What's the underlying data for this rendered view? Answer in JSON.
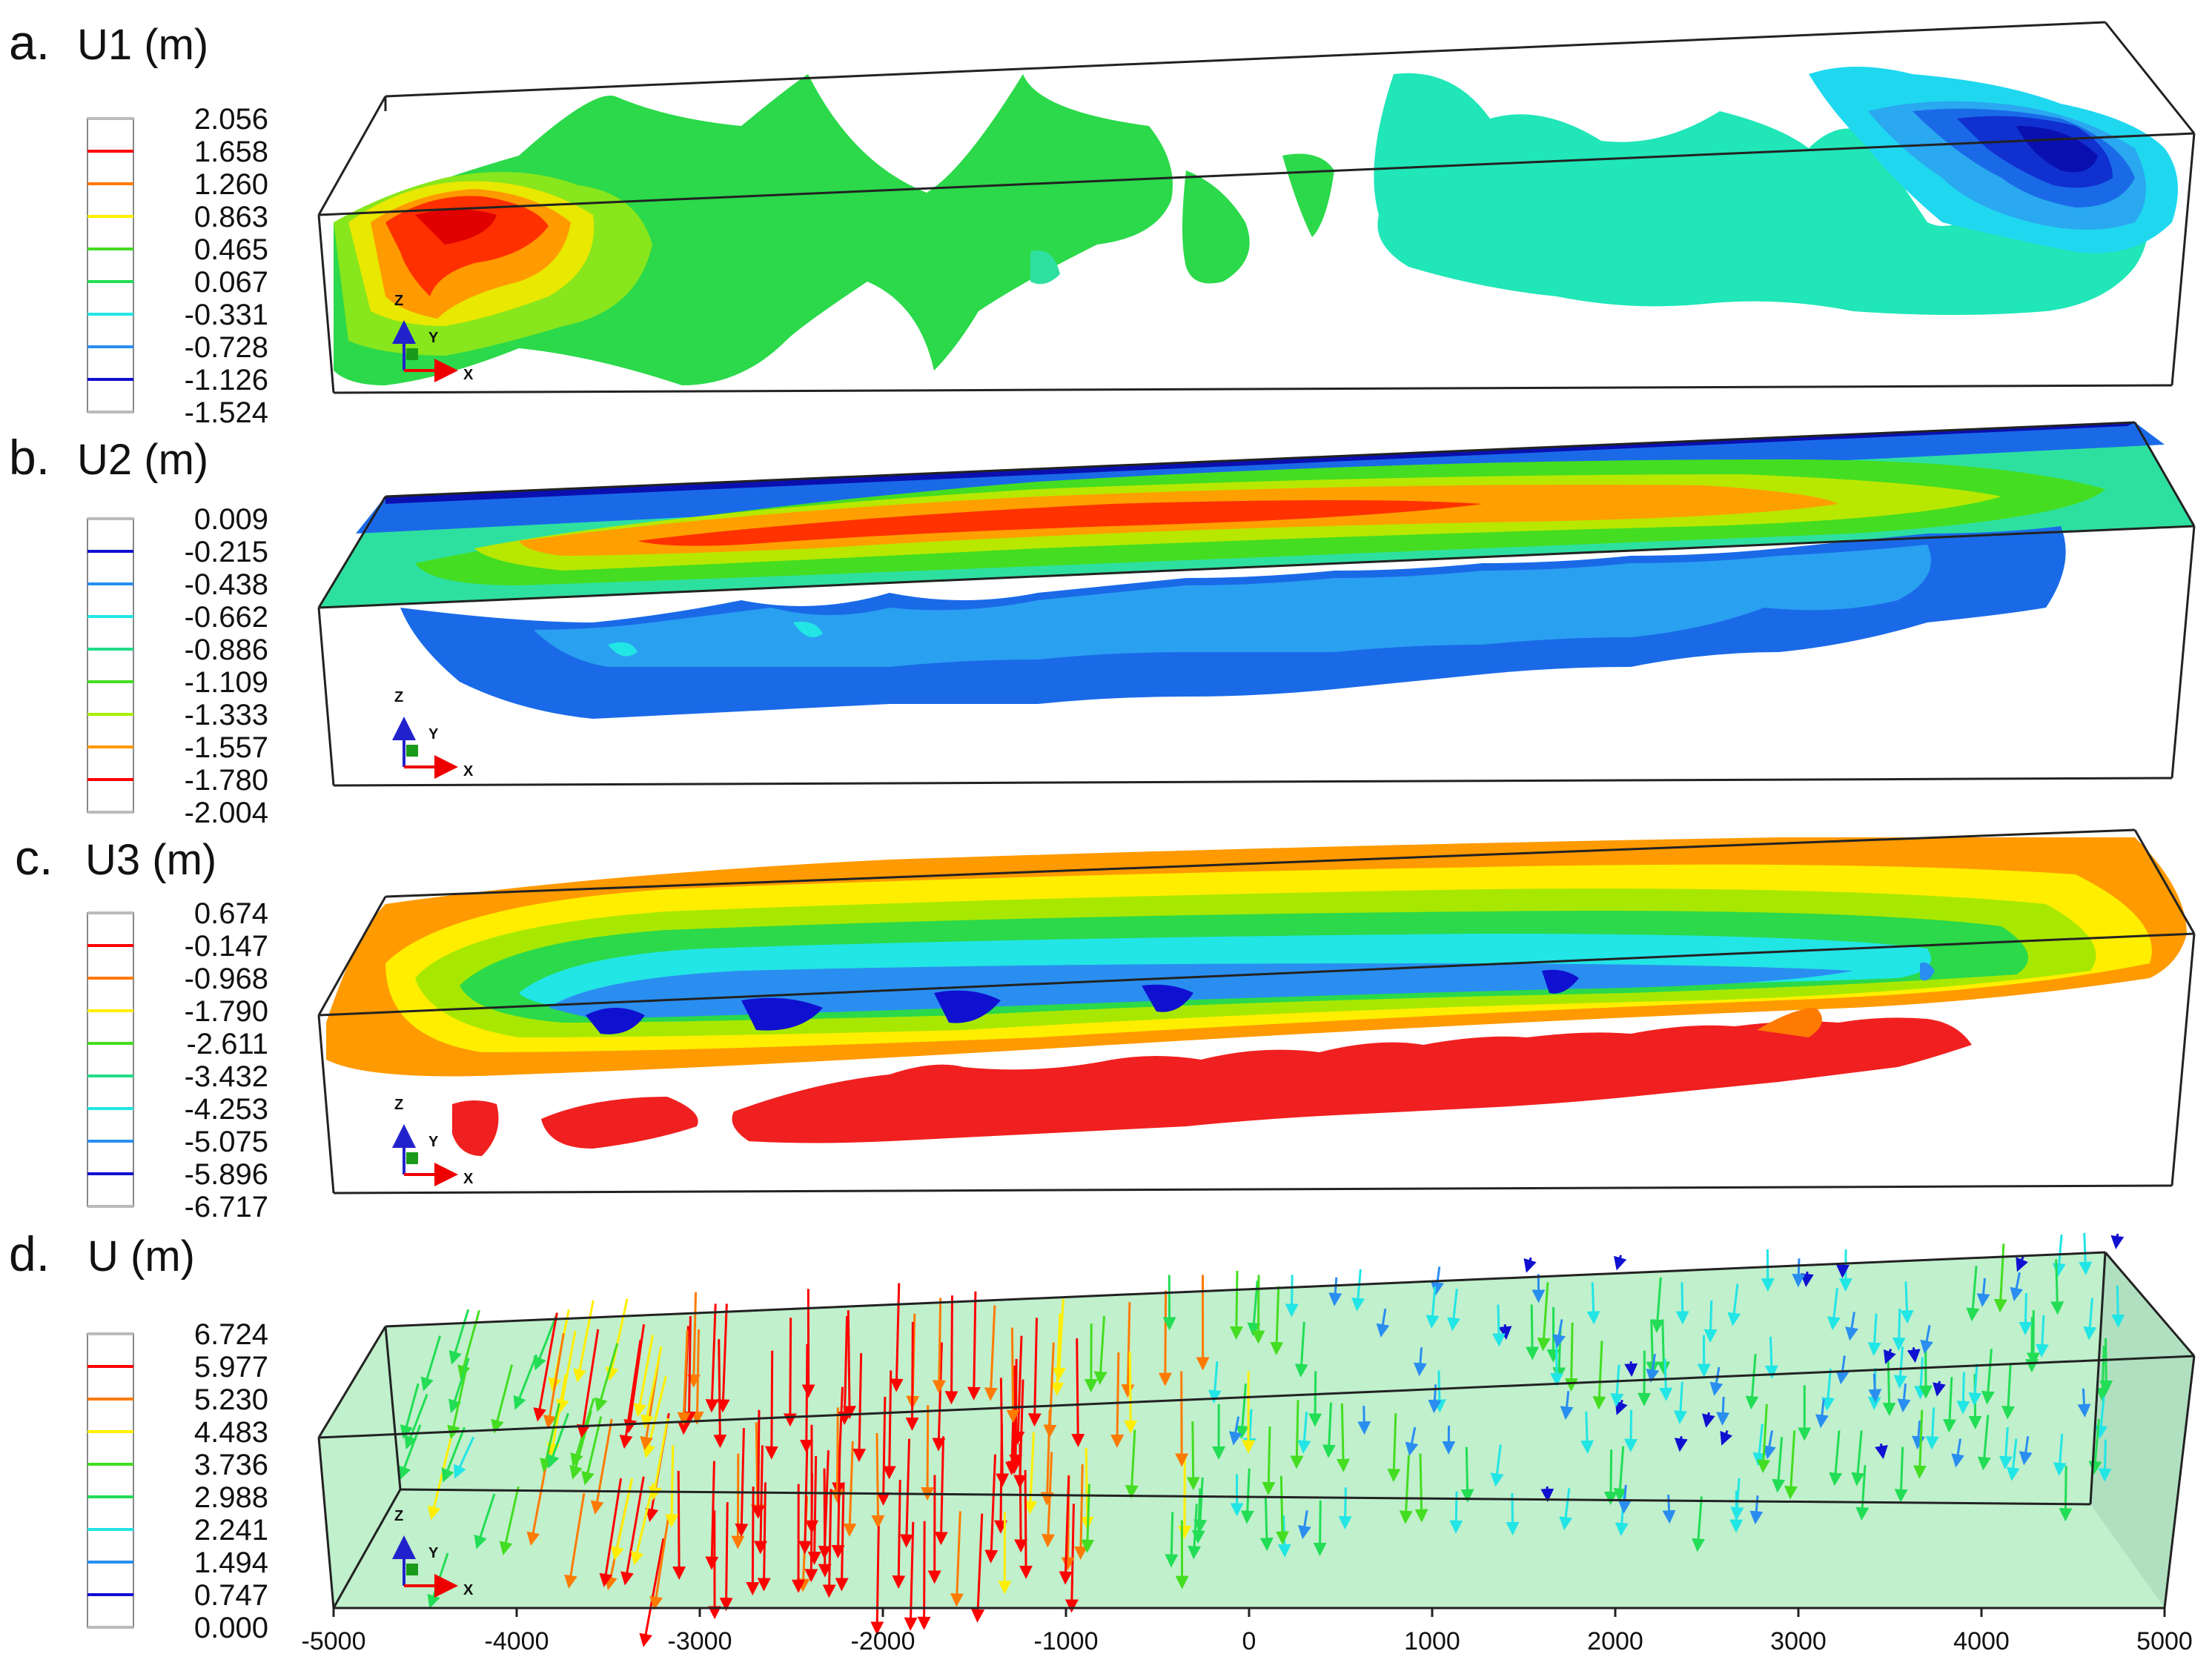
{
  "panels": [
    {
      "letter": "a.",
      "title": "U1 (m)",
      "legend": [
        "2.056",
        "1.658",
        "1.260",
        "0.863",
        "0.465",
        "0.067",
        "-0.331",
        "-0.728",
        "-1.126",
        "-1.524"
      ],
      "colors": [
        "#ffffff",
        "#ff0000",
        "#ff7a00",
        "#ffee00",
        "#44dd22",
        "#22dd55",
        "#22e5e5",
        "#2a8ef0",
        "#1010d0",
        "#ffffff"
      ]
    },
    {
      "letter": "b.",
      "title": "U2 (m)",
      "legend": [
        "0.009",
        "-0.215",
        "-0.438",
        "-0.662",
        "-0.886",
        "-1.109",
        "-1.333",
        "-1.557",
        "-1.780",
        "-2.004"
      ],
      "colors": [
        "#ffffff",
        "#1010d0",
        "#2a8ef0",
        "#22e5e5",
        "#22dd88",
        "#44dd22",
        "#aaee00",
        "#ff9a00",
        "#ff0000",
        "#ffffff"
      ]
    },
    {
      "letter": "c.",
      "title": "U3 (m)",
      "legend": [
        "0.674",
        "-0.147",
        "-0.968",
        "-1.790",
        "-2.611",
        "-3.432",
        "-4.253",
        "-5.075",
        "-5.896",
        "-6.717"
      ],
      "colors": [
        "#ffffff",
        "#ff0000",
        "#ff7a00",
        "#ffee00",
        "#44dd22",
        "#22dd88",
        "#22e5e5",
        "#2a8ef0",
        "#1010d0",
        "#ffffff"
      ]
    },
    {
      "letter": "d.",
      "title": "U (m)",
      "legend": [
        "6.724",
        "5.977",
        "5.230",
        "4.483",
        "3.736",
        "2.988",
        "2.241",
        "1.494",
        "0.747",
        "0.000"
      ],
      "colors": [
        "#ffffff",
        "#ff0000",
        "#ff7a00",
        "#ffee00",
        "#44dd22",
        "#22dd55",
        "#22e5e5",
        "#2a8ef0",
        "#1010d0",
        "#ffffff"
      ]
    }
  ],
  "triad": {
    "x": "X",
    "y": "Y",
    "z": "Z"
  },
  "x_axis_ticks": [
    "-5000",
    "-4000",
    "-3000",
    "-2000",
    "-1000",
    "0",
    "1000",
    "2000",
    "3000",
    "4000",
    "5000"
  ]
}
